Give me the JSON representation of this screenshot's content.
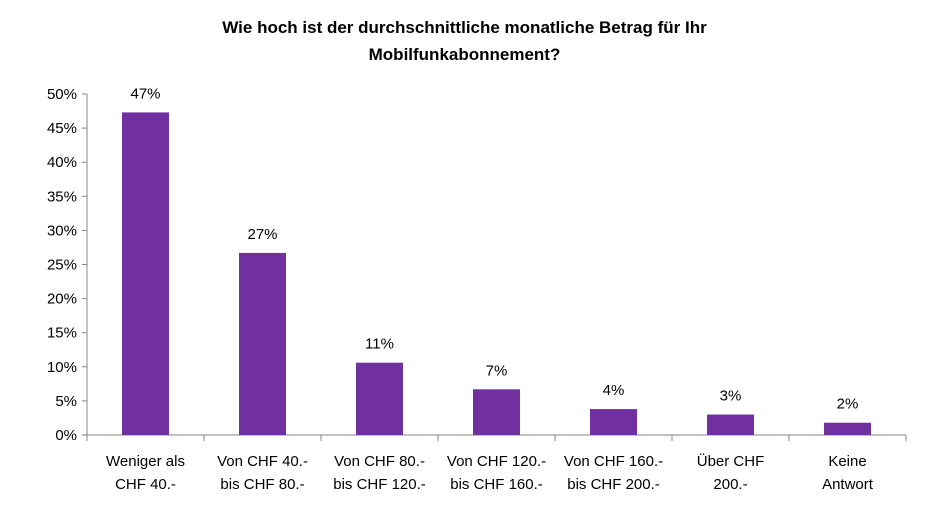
{
  "chart_data": {
    "type": "bar",
    "title": "Wie hoch ist der durchschnittliche monatliche Betrag für Ihr\nMobilfunkabonnement?",
    "categories": [
      [
        "Weniger als",
        "CHF 40.-"
      ],
      [
        "Von CHF 40.-",
        "bis CHF 80.-"
      ],
      [
        "Von CHF 80.-",
        "bis CHF 120.-"
      ],
      [
        "Von CHF 120.-",
        "bis CHF 160.-"
      ],
      [
        "Von CHF 160.-",
        "bis CHF 200.-"
      ],
      [
        "Über CHF",
        "200.-"
      ],
      [
        "Keine",
        "Antwort"
      ]
    ],
    "values": [
      47.3,
      26.7,
      10.6,
      6.7,
      3.8,
      3.0,
      1.8
    ],
    "data_labels": [
      "47%",
      "27%",
      "11%",
      "7%",
      "4%",
      "3%",
      "2%"
    ],
    "ylim": [
      0,
      50
    ],
    "y_ticks": [
      0,
      5,
      10,
      15,
      20,
      25,
      30,
      35,
      40,
      45,
      50
    ],
    "y_tick_labels": [
      "0%",
      "5%",
      "10%",
      "15%",
      "20%",
      "25%",
      "30%",
      "35%",
      "40%",
      "45%",
      "50%"
    ],
    "xlabel": "",
    "ylabel": "",
    "grid": false,
    "legend": "none",
    "bar_color": "#7030A0"
  }
}
